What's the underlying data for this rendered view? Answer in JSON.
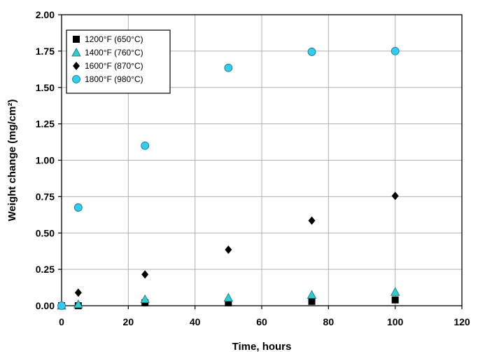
{
  "chart_data": {
    "type": "scatter",
    "title": "",
    "xlabel": "Time, hours",
    "ylabel": "Weight change (mg/cm²)",
    "xlim": [
      0,
      120
    ],
    "ylim": [
      0,
      2.0
    ],
    "xticks": [
      "0",
      "20",
      "40",
      "60",
      "80",
      "100",
      "120"
    ],
    "yticks": [
      "0.00",
      "0.25",
      "0.50",
      "0.75",
      "1.00",
      "1.25",
      "1.50",
      "1.75",
      "2.00"
    ],
    "grid": true,
    "legend_position": "top-left",
    "series": [
      {
        "name": "1200°F (650°C)",
        "marker": "square",
        "color": "#000000",
        "x": [
          0,
          5,
          25,
          50,
          75,
          100
        ],
        "y": [
          0.0,
          0.0,
          0.02,
          0.02,
          0.03,
          0.04
        ]
      },
      {
        "name": "1400°F (760°C)",
        "marker": "triangle",
        "color": "#33cccc",
        "x": [
          0,
          5,
          25,
          50,
          75,
          100
        ],
        "y": [
          0.0,
          0.01,
          0.045,
          0.055,
          0.075,
          0.095
        ]
      },
      {
        "name": "1600°F (870°C)",
        "marker": "diamond",
        "color": "#000000",
        "x": [
          0,
          5,
          25,
          50,
          75,
          100
        ],
        "y": [
          0.0,
          0.09,
          0.215,
          0.385,
          0.585,
          0.755
        ]
      },
      {
        "name": "1800°F (980°C)",
        "marker": "circle",
        "color": "#33ccee",
        "x": [
          0,
          5,
          25,
          50,
          75,
          100
        ],
        "y": [
          0.0,
          0.675,
          1.1,
          1.635,
          1.745,
          1.75
        ]
      }
    ]
  }
}
